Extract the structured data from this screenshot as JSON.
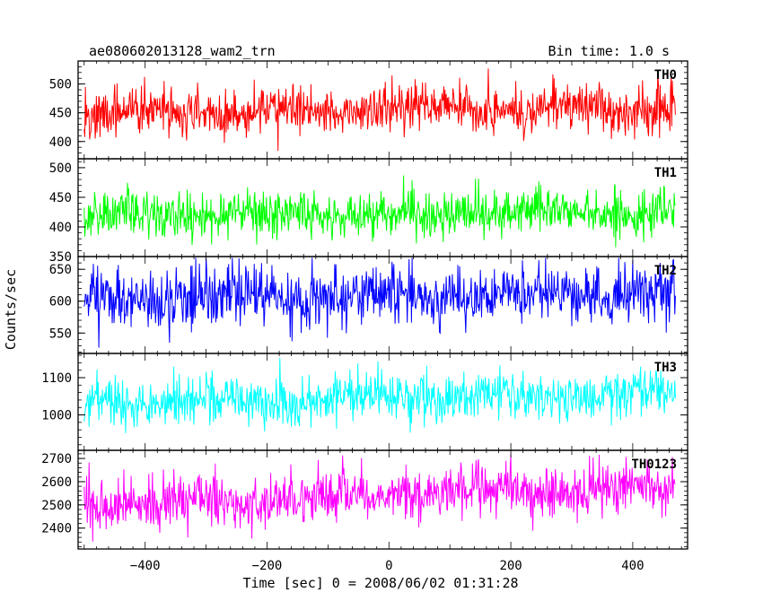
{
  "header": {
    "source_name": "ae080602013128_wam2_trn",
    "bin_time": "Bin time: 1.0 s"
  },
  "chart_data": {
    "type": "line",
    "xlabel": "Time [sec] 0 = 2008/06/02 01:31:28",
    "ylabel": "Counts/sec",
    "xlim": [
      -510,
      490
    ],
    "x_ticks": [
      -400,
      -200,
      0,
      200,
      400
    ],
    "x_tick_labels": [
      "−400",
      "−200",
      "0",
      "200",
      "400"
    ],
    "data_x_range": [
      -500,
      470
    ],
    "bin_time_sec": 1.0,
    "grid": false,
    "panels": [
      {
        "name": "TH0",
        "color": "#ff0000",
        "ylim": [
          370,
          540
        ],
        "yticks": [
          400,
          450,
          500
        ],
        "mean": 450,
        "noise_sigma": 21,
        "trend_end": 10,
        "min": 378,
        "max": 535
      },
      {
        "name": "TH1",
        "color": "#00ff00",
        "ylim": [
          350,
          515
        ],
        "yticks": [
          350,
          400,
          450,
          500
        ],
        "mean": 420,
        "noise_sigma": 20,
        "trend_end": 6,
        "min": 355,
        "max": 505
      },
      {
        "name": "TH2",
        "color": "#0000ff",
        "ylim": [
          518,
          670
        ],
        "yticks": [
          550,
          600,
          650
        ],
        "mean": 602,
        "noise_sigma": 23,
        "trend_end": 12,
        "min": 525,
        "max": 668
      },
      {
        "name": "TH3",
        "color": "#00ffff",
        "ylim": [
          905,
          1165
        ],
        "yticks": [
          1000,
          1100
        ],
        "mean": 1030,
        "noise_sigma": 32,
        "trend_end": 30,
        "min": 920,
        "max": 1160
      },
      {
        "name": "TH0123",
        "color": "#ff00ff",
        "ylim": [
          2310,
          2735
        ],
        "yticks": [
          2400,
          2500,
          2600,
          2700
        ],
        "mean": 2500,
        "noise_sigma": 55,
        "trend_end": 80,
        "min": 2320,
        "max": 2730
      }
    ]
  }
}
